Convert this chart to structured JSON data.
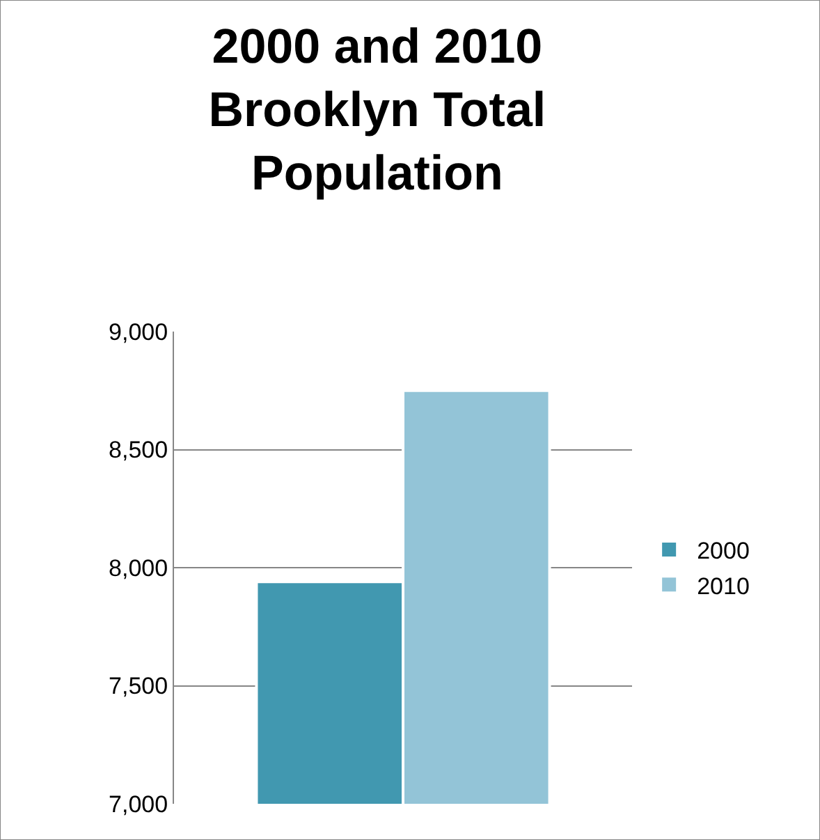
{
  "chart_data": {
    "type": "bar",
    "title": "2000 and 2010\nBrooklyn Total\nPopulation",
    "categories": [
      null
    ],
    "series": [
      {
        "name": "2000",
        "color": "#4198b0",
        "values": [
          7940
        ]
      },
      {
        "name": "2010",
        "color": "#93c4d7",
        "values": [
          8750
        ]
      }
    ],
    "ylim": [
      7000,
      9000
    ],
    "yticks": [
      {
        "value": 7000,
        "label": "7,000"
      },
      {
        "value": 7500,
        "label": "7,500"
      },
      {
        "value": 8000,
        "label": "8,000"
      },
      {
        "value": 8500,
        "label": "8,500"
      },
      {
        "value": 9000,
        "label": "9,000"
      }
    ],
    "grid": "y",
    "legend": "right"
  }
}
